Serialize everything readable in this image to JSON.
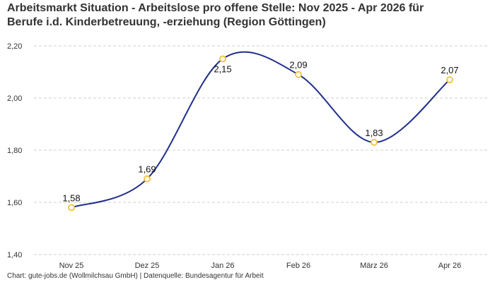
{
  "title": {
    "line1": "Arbeitsmarkt Situation - Arbeitslose pro offene Stelle: Nov 2025 - Apr 2026 für",
    "line2": "Berufe i.d. Kinderbetreuung, -erziehung (Region Göttingen)"
  },
  "footer": "Chart: gute-jobs.de (Wollmilchsau GmbH) | Datenquelle: Bundesagentur für Arbeit",
  "chart_data": {
    "type": "line",
    "title": "Arbeitsmarkt Situation - Arbeitslose pro offene Stelle: Nov 2025 - Apr 2026 für Berufe i.d. Kinderbetreuung, -erziehung (Region Göttingen)",
    "xlabel": "",
    "ylabel": "",
    "categories": [
      "Nov 25",
      "Dez 25",
      "Jan 26",
      "Feb 26",
      "März 26",
      "Apr 26"
    ],
    "values": [
      1.58,
      1.69,
      2.15,
      2.09,
      1.83,
      2.07
    ],
    "data_labels": [
      "1,58",
      "1,69",
      "2,15",
      "2,09",
      "1,83",
      "2,07"
    ],
    "ylim": [
      1.4,
      2.2
    ],
    "yticks": [
      1.4,
      1.6,
      1.8,
      2.0,
      2.2
    ],
    "ytick_labels": [
      "1,40",
      "1,60",
      "1,80",
      "2,00",
      "2,20"
    ],
    "grid": true,
    "line_color": "#1f2f8a",
    "marker_color": "#f2c230"
  }
}
